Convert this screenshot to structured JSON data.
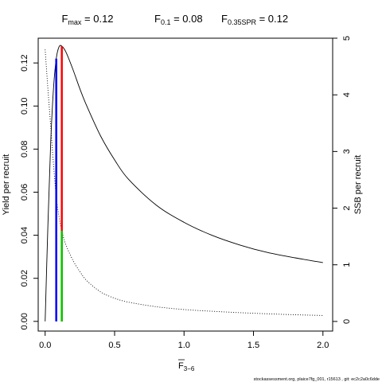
{
  "title": {
    "fmax": {
      "main": "F",
      "sub": "max",
      "value": " = 0.12"
    },
    "f01": {
      "main": "F",
      "sub": "0.1",
      "value": " = 0.08"
    },
    "f35": {
      "main": "F",
      "sub": "0.35SPR",
      "value": " = 0.12"
    }
  },
  "footer": "stockassessment.org, plaice7fg_001, r15613 ,  git: ec2c2a0c6dde",
  "chart_data": {
    "type": "line",
    "xlabel": {
      "main": "F",
      "sub": "3−6"
    },
    "ylabel_left": "Yield per recruit",
    "ylabel_right": "SSB per recruit",
    "xlim": [
      -0.05,
      2.07
    ],
    "ylim_left": [
      -0.0045,
      0.1315
    ],
    "ylim_right": [
      -0.17,
      5.0
    ],
    "x_ticks": [
      0.0,
      0.5,
      1.0,
      1.5,
      2.0
    ],
    "x_tick_labels": [
      "0.0",
      "0.5",
      "1.0",
      "1.5",
      "2.0"
    ],
    "y_ticks_left": [
      0.0,
      0.02,
      0.04,
      0.06,
      0.08,
      0.1,
      0.12
    ],
    "y_tick_labels_left": [
      "0.00",
      "0.02",
      "0.04",
      "0.06",
      "0.08",
      "0.10",
      "0.12"
    ],
    "y_ticks_right": [
      0,
      1,
      2,
      3,
      4,
      5
    ],
    "y_tick_labels_right": [
      "0",
      "1",
      "2",
      "3",
      "4",
      "5"
    ],
    "series": [
      {
        "axis": "left",
        "style": "solid",
        "color": "#000000",
        "x": [
          0.0,
          0.02,
          0.04,
          0.06,
          0.08,
          0.1,
          0.12,
          0.15,
          0.2,
          0.25,
          0.3,
          0.4,
          0.5,
          0.6,
          0.8,
          1.0,
          1.2,
          1.4,
          1.6,
          1.8,
          2.0
        ],
        "y": [
          0.0,
          0.045,
          0.083,
          0.108,
          0.122,
          0.1275,
          0.1278,
          0.125,
          0.117,
          0.108,
          0.1,
          0.086,
          0.075,
          0.066,
          0.054,
          0.046,
          0.04,
          0.0355,
          0.032,
          0.0295,
          0.0273
        ]
      },
      {
        "axis": "right",
        "style": "dotted",
        "color": "#000000",
        "x": [
          0.0,
          0.02,
          0.04,
          0.06,
          0.08,
          0.1,
          0.12,
          0.15,
          0.2,
          0.25,
          0.3,
          0.4,
          0.5,
          0.6,
          0.8,
          1.0,
          1.2,
          1.4,
          1.6,
          1.8,
          2.0
        ],
        "y": [
          4.8,
          4.1,
          3.45,
          2.78,
          2.2,
          1.85,
          1.6,
          1.35,
          1.08,
          0.88,
          0.72,
          0.52,
          0.41,
          0.34,
          0.26,
          0.21,
          0.18,
          0.155,
          0.135,
          0.118,
          0.105
        ]
      }
    ],
    "reference_lines": [
      {
        "name": "Fmax",
        "x": 0.12,
        "axis": "left",
        "y0": 0.0,
        "y1": 0.1278,
        "color": "#ff0000"
      },
      {
        "name": "F0.1",
        "x": 0.08,
        "axis": "left",
        "y0": 0.0,
        "y1": 0.122,
        "color": "#0000ff"
      },
      {
        "name": "F0.35SPR",
        "x": 0.12,
        "axis": "right",
        "y0": 0.0,
        "y1": 1.6,
        "color": "#00cd00"
      }
    ]
  }
}
